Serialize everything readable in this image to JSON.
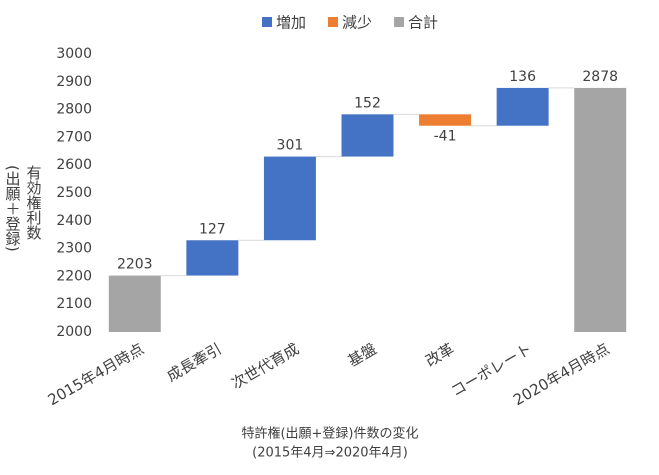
{
  "chart_data": {
    "type": "waterfall",
    "title": "特許権(出願+登録)件数の変化",
    "subtitle": "(2015年4月⇒2020年4月)",
    "y_label": [
      "有効権利数",
      "(出願＋登録)"
    ],
    "categories": [
      "2015年4月時点",
      "成長牽引",
      "次世代育成",
      "基盤",
      "改革",
      "コーポレート",
      "2020年4月時点"
    ],
    "series": [
      {
        "name": "増加",
        "color": "#4472c4",
        "values": [
          null,
          127,
          301,
          152,
          null,
          136,
          null
        ]
      },
      {
        "name": "減少",
        "color": "#ed7d31",
        "values": [
          null,
          null,
          null,
          null,
          -41,
          null,
          null
        ]
      },
      {
        "name": "合計",
        "color": "#a5a5a5",
        "values": [
          2203,
          null,
          null,
          null,
          null,
          null,
          2878
        ]
      }
    ],
    "ylim": [
      2000,
      3000
    ],
    "yticks": [
      2000,
      2100,
      2200,
      2300,
      2400,
      2500,
      2600,
      2700,
      2800,
      2900,
      3000
    ],
    "grid": false
  }
}
